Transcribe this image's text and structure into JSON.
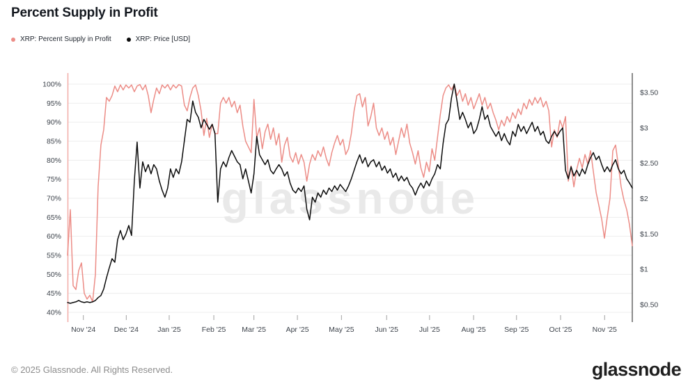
{
  "header": {
    "title": "Percent Supply in Profit"
  },
  "legend": {
    "items": [
      {
        "label": "XRP: Percent Supply in Profit",
        "color": "#ec8c86"
      },
      {
        "label": "XRP: Price [USD]",
        "color": "#0b0b0b"
      }
    ]
  },
  "watermark": {
    "text": "glassnode",
    "color": "#e9e9e9"
  },
  "footer": {
    "copyright": "© 2025 Glassnode. All Rights Reserved.",
    "brand": "glassnode"
  },
  "chart_data": {
    "type": "line",
    "title": "Percent Supply in Profit",
    "grid": true,
    "legend_position": "top-left",
    "x_axis": {
      "labels": [
        "Nov '24",
        "Dec '24",
        "Jan '25",
        "Feb '25",
        "Mar '25",
        "Apr '25",
        "May '25",
        "Jun '25",
        "Jul '25",
        "Aug '25",
        "Sep '25",
        "Oct '25",
        "Nov '25"
      ],
      "fractions": [
        0.028,
        0.104,
        0.18,
        0.259,
        0.33,
        0.407,
        0.485,
        0.565,
        0.641,
        0.719,
        0.795,
        0.873,
        0.951
      ]
    },
    "y_left": {
      "title": "Percent Supply in Profit",
      "min": 40,
      "max": 100,
      "tick_values": [
        40,
        45,
        50,
        55,
        60,
        65,
        70,
        75,
        80,
        85,
        90,
        95,
        100
      ],
      "tick_labels": [
        "40%",
        "45%",
        "50%",
        "55%",
        "60%",
        "65%",
        "70%",
        "75%",
        "80%",
        "85%",
        "90%",
        "95%",
        "100%"
      ],
      "axis_color": "#f2aba7"
    },
    "y_right": {
      "title": "Price [USD]",
      "min": 0.5,
      "max": 3.5,
      "tick_values": [
        0.5,
        1,
        1.5,
        2,
        2.5,
        3,
        3.5
      ],
      "tick_labels": [
        "$0.50",
        "$1",
        "$1.50",
        "$2",
        "$2.50",
        "$3",
        "$3.50"
      ],
      "axis_color": "#4d4d4d"
    },
    "series": [
      {
        "name": "XRP: Percent Supply in Profit",
        "axis": "left",
        "unit": "%",
        "color": "#ec8c86",
        "values": [
          55,
          67,
          47,
          46,
          51,
          53,
          45,
          43.5,
          44.5,
          42.8,
          50,
          73,
          84,
          88,
          96.5,
          95.5,
          97,
          99.5,
          98,
          99.8,
          98.5,
          99.8,
          99,
          99.8,
          98,
          99.5,
          99.9,
          98.5,
          99.8,
          97,
          92.5,
          96,
          99,
          97.5,
          99.8,
          99,
          99.9,
          98.5,
          99.8,
          99,
          99.9,
          99.5,
          94.5,
          93,
          96.5,
          99,
          99.8,
          97,
          93,
          86.5,
          91,
          86,
          89.5,
          87,
          87,
          95,
          96.5,
          95,
          96.5,
          94,
          95.5,
          92.5,
          94.5,
          89,
          85,
          83.5,
          82,
          96,
          86,
          88.5,
          83,
          87.5,
          89.5,
          85.5,
          88.5,
          84,
          87,
          79.5,
          84,
          86,
          81,
          79.5,
          82,
          79,
          81.5,
          79.5,
          74.5,
          79,
          81.5,
          80,
          82.5,
          81,
          83.5,
          80.5,
          78.5,
          82,
          84.5,
          86.5,
          84,
          85.5,
          81.5,
          83,
          87,
          93,
          97,
          97.5,
          94,
          96.5,
          89,
          91.5,
          95,
          88.5,
          86.5,
          88.5,
          85.5,
          87.5,
          84,
          86,
          81.5,
          85,
          88.5,
          86,
          89.5,
          84.5,
          82,
          79,
          82.5,
          78,
          75.5,
          79.5,
          77,
          83,
          80,
          86,
          92,
          97,
          99,
          99.8,
          98.5,
          99.9,
          97,
          98.5,
          95.5,
          97.5,
          94.5,
          96.5,
          93.5,
          95.5,
          97.5,
          94.5,
          96.5,
          93.5,
          95,
          92.5,
          90.5,
          88,
          90.5,
          89,
          91.5,
          90,
          92.5,
          91,
          93.5,
          92,
          95,
          93.5,
          96,
          94.5,
          96.5,
          95,
          96.5,
          94,
          95.5,
          93,
          83.5,
          88,
          86,
          90.5,
          88.5,
          91.5,
          74.5,
          78.5,
          73,
          77.5,
          80.5,
          78,
          81.5,
          79,
          82.5,
          77,
          71.5,
          68,
          64.5,
          59.5,
          65,
          70,
          82.5,
          84,
          78.5,
          73,
          69.5,
          67,
          63,
          57.5
        ]
      },
      {
        "name": "XRP: Price [USD]",
        "axis": "right",
        "unit": "USD",
        "color": "#0b0b0b",
        "values": [
          0.53,
          0.52,
          0.53,
          0.54,
          0.56,
          0.54,
          0.53,
          0.54,
          0.53,
          0.54,
          0.56,
          0.6,
          0.63,
          0.72,
          0.88,
          1.02,
          1.15,
          1.1,
          1.42,
          1.55,
          1.42,
          1.5,
          1.62,
          1.48,
          2.25,
          2.8,
          2.15,
          2.52,
          2.38,
          2.48,
          2.35,
          2.48,
          2.42,
          2.25,
          2.12,
          2.02,
          2.15,
          2.42,
          2.3,
          2.42,
          2.35,
          2.52,
          2.82,
          3.12,
          3.08,
          3.38,
          3.22,
          3.15,
          3.0,
          3.12,
          3.05,
          2.98,
          3.05,
          2.92,
          1.95,
          2.42,
          2.52,
          2.45,
          2.58,
          2.68,
          2.6,
          2.52,
          2.48,
          2.28,
          2.42,
          2.25,
          2.08,
          2.35,
          2.88,
          2.62,
          2.55,
          2.48,
          2.55,
          2.4,
          2.35,
          2.42,
          2.48,
          2.42,
          2.32,
          2.38,
          2.22,
          2.12,
          2.08,
          2.15,
          2.1,
          2.18,
          1.85,
          1.7,
          2.02,
          1.95,
          2.08,
          2.02,
          2.12,
          2.06,
          2.15,
          2.1,
          2.18,
          2.12,
          2.2,
          2.15,
          2.1,
          2.18,
          2.28,
          2.4,
          2.52,
          2.62,
          2.5,
          2.58,
          2.45,
          2.52,
          2.55,
          2.45,
          2.52,
          2.4,
          2.46,
          2.36,
          2.42,
          2.3,
          2.36,
          2.25,
          2.32,
          2.25,
          2.3,
          2.2,
          2.15,
          2.05,
          2.15,
          2.22,
          2.15,
          2.25,
          2.18,
          2.28,
          2.35,
          2.48,
          2.42,
          2.78,
          3.05,
          3.12,
          3.42,
          3.62,
          3.38,
          3.12,
          3.22,
          3.12,
          3.0,
          3.08,
          2.92,
          2.98,
          3.12,
          3.3,
          3.12,
          3.18,
          3.02,
          2.95,
          2.88,
          2.95,
          2.82,
          2.92,
          2.82,
          2.76,
          2.95,
          2.88,
          3.05,
          2.95,
          3.02,
          2.92,
          3.0,
          3.08,
          2.95,
          3.02,
          2.9,
          2.95,
          2.82,
          2.78,
          2.88,
          2.95,
          2.88,
          2.95,
          3.0,
          2.4,
          2.28,
          2.45,
          2.32,
          2.4,
          2.32,
          2.42,
          2.35,
          2.48,
          2.58,
          2.65,
          2.55,
          2.6,
          2.48,
          2.38,
          2.45,
          2.38,
          2.48,
          2.55,
          2.42,
          2.35,
          2.4,
          2.28,
          2.22,
          2.15
        ]
      }
    ],
    "style": {
      "grid_color": "#ededed",
      "tick_color": "#a0a0a0",
      "axis_text_color": "#3d434b",
      "line_width": 1.5
    }
  }
}
